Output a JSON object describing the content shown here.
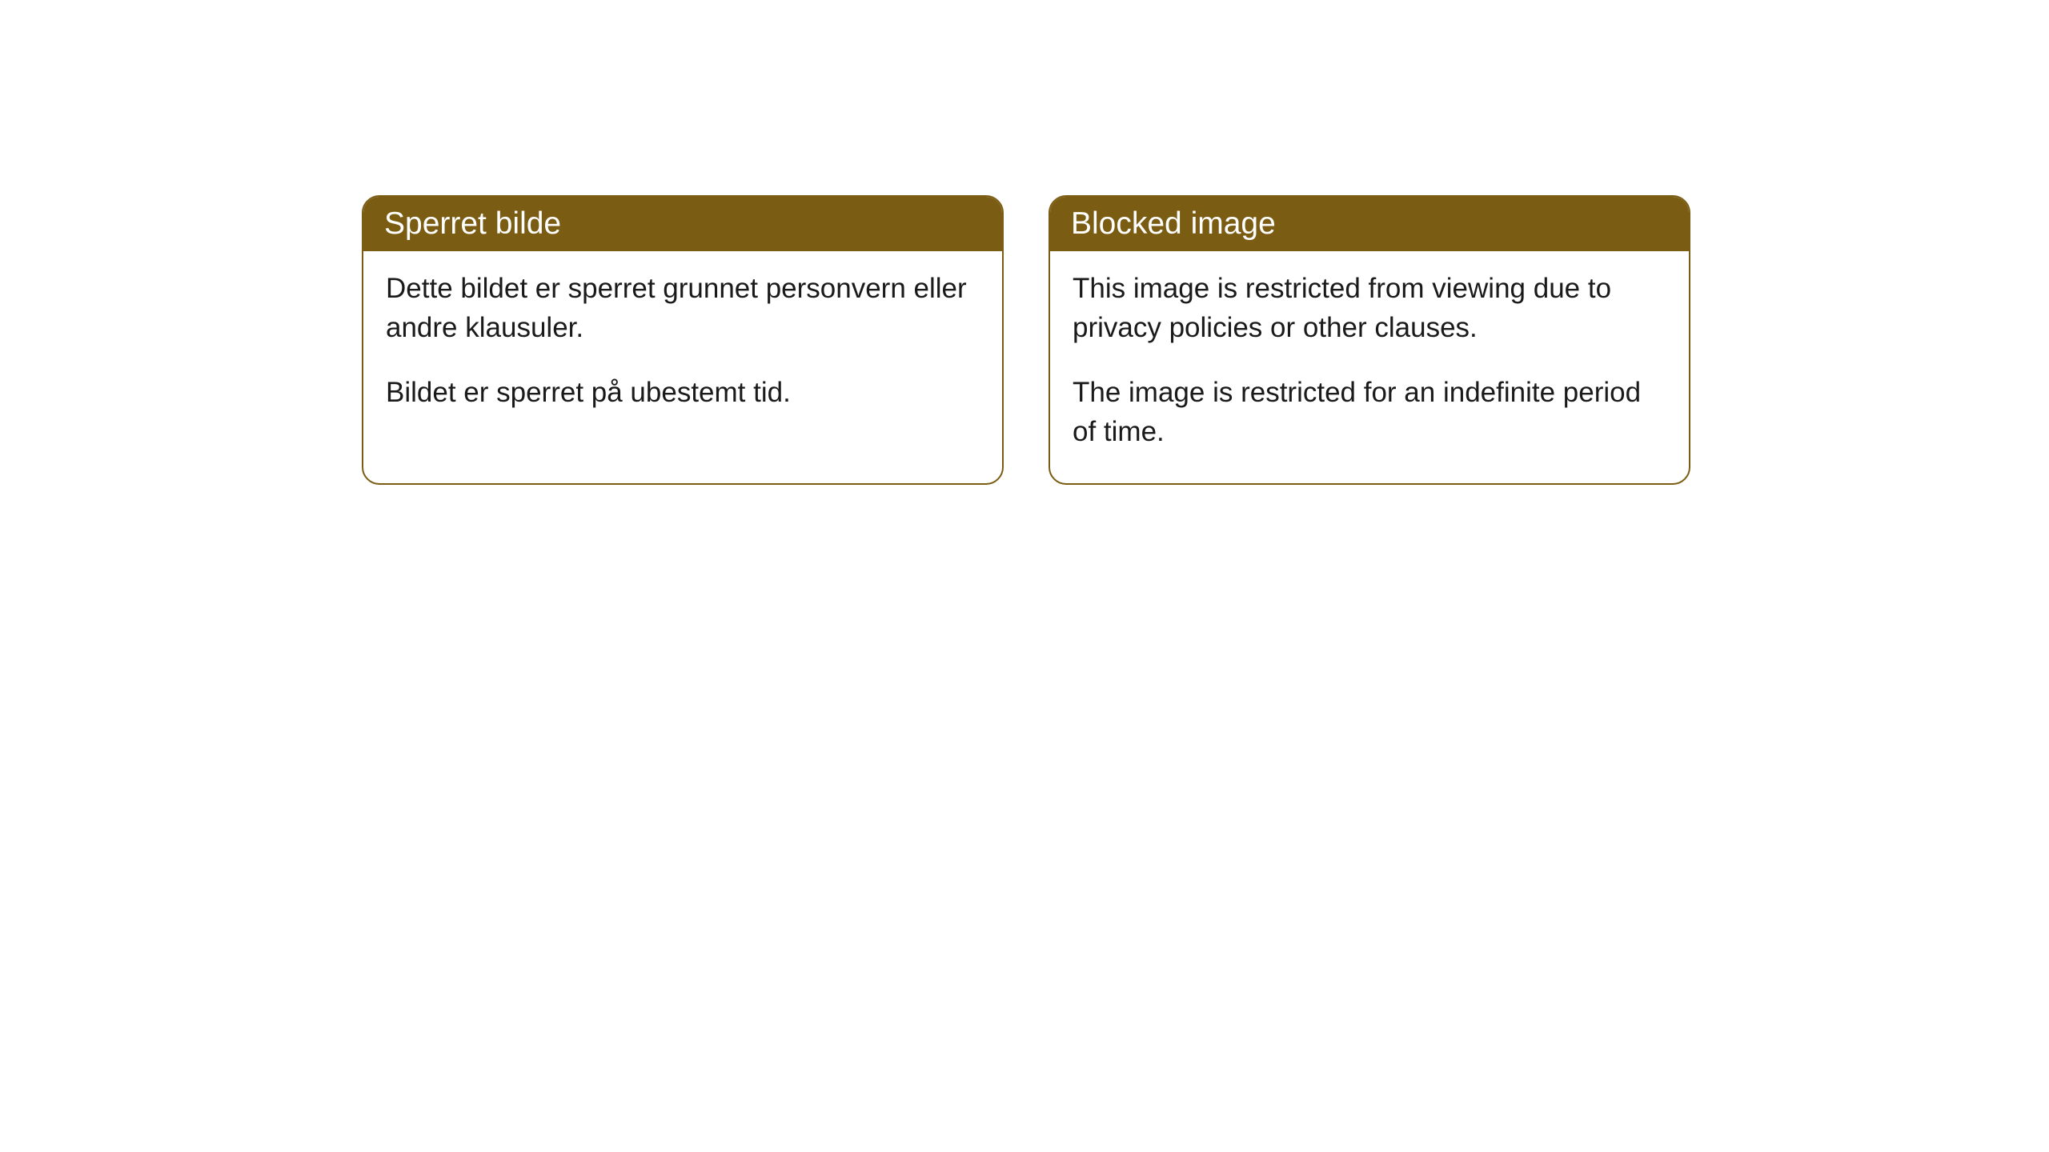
{
  "cards": [
    {
      "title": "Sperret bilde",
      "paragraph1": "Dette bildet er sperret grunnet personvern eller andre klausuler.",
      "paragraph2": "Bildet er sperret på ubestemt tid."
    },
    {
      "title": "Blocked image",
      "paragraph1": "This image is restricted from viewing due to privacy policies or other clauses.",
      "paragraph2": "The image is restricted for an indefinite period of time."
    }
  ],
  "style": {
    "header_bg_color": "#7a5c13",
    "header_text_color": "#ffffff",
    "border_color": "#7a5c13",
    "body_bg_color": "#ffffff",
    "body_text_color": "#1a1a1a",
    "border_radius": 22,
    "header_font_size": 39,
    "body_font_size": 35
  }
}
